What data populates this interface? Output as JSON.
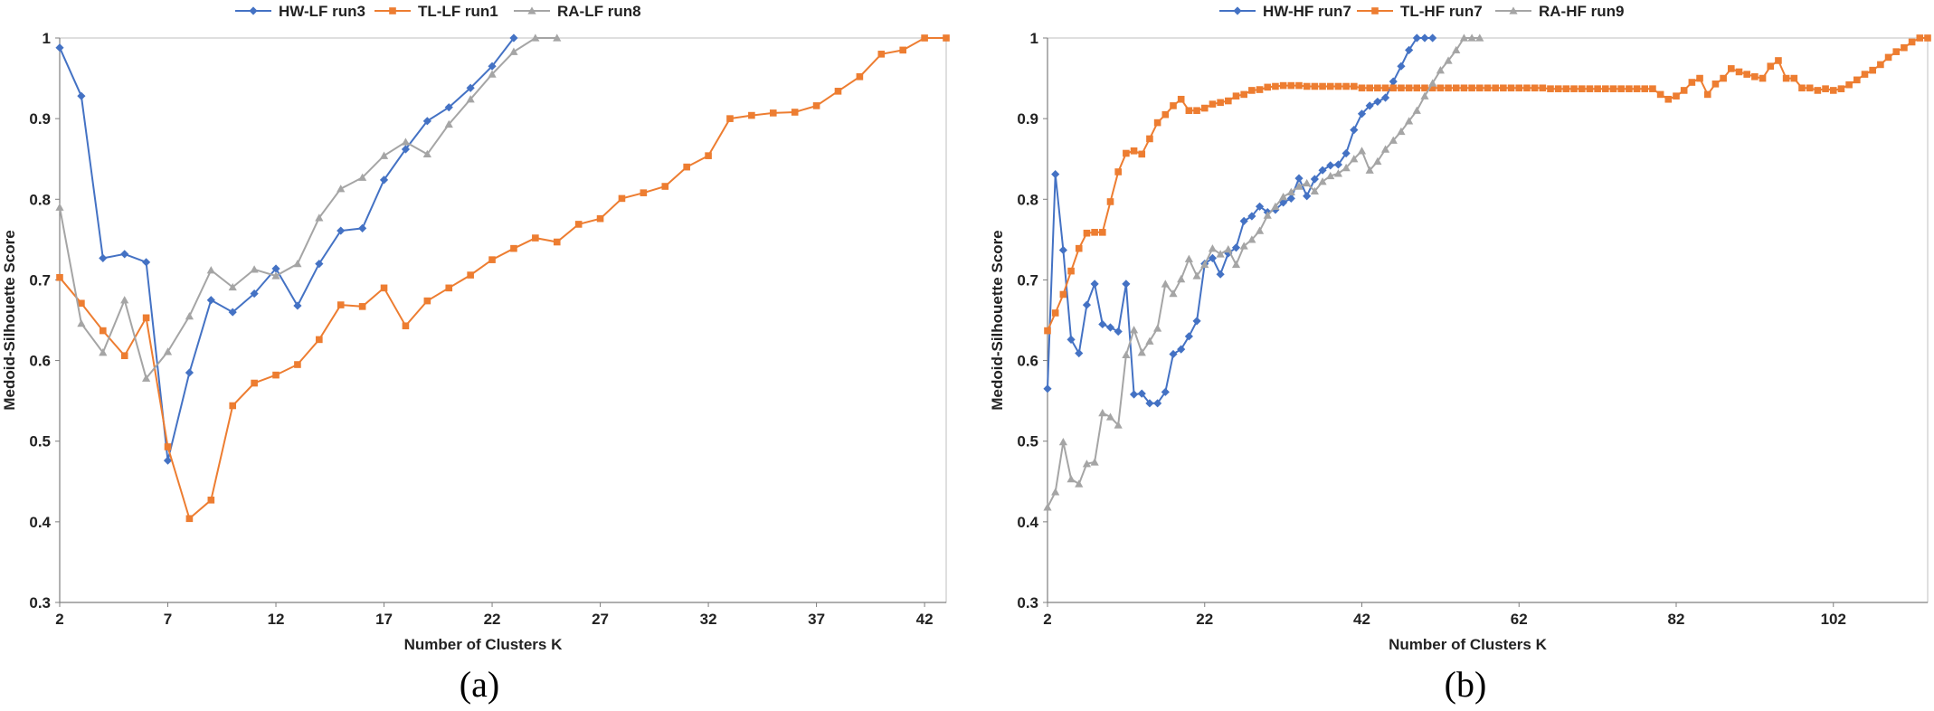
{
  "chart_data": [
    {
      "type": "line",
      "caption": "(a)",
      "xlabel": "Number of Clusters K",
      "ylabel": "Medoid-Silhouette Score",
      "xlim": [
        2,
        43
      ],
      "ylim": [
        0.3,
        1
      ],
      "xticks": [
        2,
        7,
        12,
        17,
        22,
        27,
        32,
        37,
        42
      ],
      "yticks": [
        0.3,
        0.4,
        0.5,
        0.6,
        0.7,
        0.8,
        0.9,
        1
      ],
      "ytick_labels": [
        "0.3",
        "0.4",
        "0.5",
        "0.6",
        "0.7",
        "0.8",
        "0.9",
        "1"
      ],
      "legend": "top",
      "series": [
        {
          "name": "HW-LF run3",
          "color": "#4472C4",
          "marker": "diamond",
          "x": [
            2,
            3,
            4,
            5,
            6,
            7,
            8,
            9,
            10,
            11,
            12,
            13,
            14,
            15,
            16,
            17,
            18,
            19,
            20,
            21,
            22,
            23
          ],
          "y": [
            0.988,
            0.928,
            0.727,
            0.732,
            0.722,
            0.476,
            0.585,
            0.675,
            0.66,
            0.683,
            0.714,
            0.668,
            0.72,
            0.761,
            0.764,
            0.824,
            0.862,
            0.897,
            0.914,
            0.938,
            0.965,
            1.0
          ]
        },
        {
          "name": "TL-LF run1",
          "color": "#ED7D31",
          "marker": "square",
          "x": [
            2,
            3,
            4,
            5,
            6,
            7,
            8,
            9,
            10,
            11,
            12,
            13,
            14,
            15,
            16,
            17,
            18,
            19,
            20,
            21,
            22,
            23,
            24,
            25,
            26,
            27,
            28,
            29,
            30,
            31,
            32,
            33,
            34,
            35,
            36,
            37,
            38,
            39,
            40,
            41,
            42,
            43
          ],
          "y": [
            0.703,
            0.671,
            0.637,
            0.606,
            0.653,
            0.493,
            0.404,
            0.427,
            0.544,
            0.572,
            0.582,
            0.595,
            0.626,
            0.669,
            0.667,
            0.69,
            0.643,
            0.674,
            0.69,
            0.706,
            0.725,
            0.739,
            0.752,
            0.747,
            0.769,
            0.776,
            0.801,
            0.808,
            0.816,
            0.84,
            0.854,
            0.9,
            0.904,
            0.907,
            0.908,
            0.916,
            0.934,
            0.952,
            0.98,
            0.985,
            1.0,
            1.0
          ]
        },
        {
          "name": "RA-LF run8",
          "color": "#A5A5A5",
          "marker": "triangle",
          "x": [
            2,
            3,
            4,
            5,
            6,
            7,
            8,
            9,
            10,
            11,
            12,
            13,
            14,
            15,
            16,
            17,
            18,
            19,
            20,
            21,
            22,
            23,
            24,
            25
          ],
          "y": [
            0.79,
            0.646,
            0.61,
            0.675,
            0.578,
            0.611,
            0.655,
            0.712,
            0.691,
            0.713,
            0.705,
            0.72,
            0.777,
            0.813,
            0.827,
            0.854,
            0.871,
            0.856,
            0.893,
            0.924,
            0.955,
            0.983,
            1.0,
            1.0
          ]
        }
      ]
    },
    {
      "type": "line",
      "caption": "(b)",
      "xlabel": "Number of Clusters K",
      "ylabel": "Medoid-Silhouette Score",
      "xlim": [
        2,
        114
      ],
      "ylim": [
        0.3,
        1
      ],
      "xticks": [
        2,
        22,
        42,
        62,
        82,
        102
      ],
      "yticks": [
        0.3,
        0.4,
        0.5,
        0.6,
        0.7,
        0.8,
        0.9,
        1
      ],
      "ytick_labels": [
        "0.3",
        "0.4",
        "0.5",
        "0.6",
        "0.7",
        "0.8",
        "0.9",
        "1"
      ],
      "legend": "top",
      "series": [
        {
          "name": "HW-HF run7",
          "color": "#4472C4",
          "marker": "diamond",
          "x": [
            2,
            3,
            4,
            5,
            6,
            7,
            8,
            9,
            10,
            11,
            12,
            13,
            14,
            15,
            16,
            17,
            18,
            19,
            20,
            21,
            22,
            23,
            24,
            25,
            26,
            27,
            28,
            29,
            30,
            31,
            32,
            33,
            34,
            35,
            36,
            37,
            38,
            39,
            40,
            41,
            42,
            43,
            44,
            45,
            46,
            47,
            48,
            49,
            50,
            51
          ],
          "y": [
            0.565,
            0.831,
            0.737,
            0.626,
            0.609,
            0.669,
            0.695,
            0.645,
            0.641,
            0.636,
            0.695,
            0.558,
            0.559,
            0.547,
            0.547,
            0.561,
            0.608,
            0.614,
            0.63,
            0.649,
            0.72,
            0.727,
            0.707,
            0.733,
            0.74,
            0.773,
            0.779,
            0.791,
            0.784,
            0.787,
            0.796,
            0.801,
            0.826,
            0.804,
            0.825,
            0.836,
            0.842,
            0.843,
            0.857,
            0.886,
            0.906,
            0.916,
            0.921,
            0.926,
            0.946,
            0.965,
            0.985,
            1.0,
            1.0,
            1.0
          ]
        },
        {
          "name": "TL-HF run7",
          "color": "#ED7D31",
          "marker": "square",
          "x": [
            2,
            3,
            4,
            5,
            6,
            7,
            8,
            9,
            10,
            11,
            12,
            13,
            14,
            15,
            16,
            17,
            18,
            19,
            20,
            21,
            22,
            23,
            24,
            25,
            26,
            27,
            28,
            29,
            30,
            31,
            32,
            33,
            34,
            35,
            36,
            37,
            38,
            39,
            40,
            41,
            42,
            43,
            44,
            45,
            46,
            47,
            48,
            49,
            50,
            51,
            52,
            53,
            54,
            55,
            56,
            57,
            58,
            59,
            60,
            61,
            62,
            63,
            64,
            65,
            66,
            67,
            68,
            69,
            70,
            71,
            72,
            73,
            74,
            75,
            76,
            77,
            78,
            79,
            80,
            81,
            82,
            83,
            84,
            85,
            86,
            87,
            88,
            89,
            90,
            91,
            92,
            93,
            94,
            95,
            96,
            97,
            98,
            99,
            100,
            101,
            102,
            103,
            104,
            105,
            106,
            107,
            108,
            109,
            110,
            111,
            112,
            113,
            114
          ],
          "y": [
            0.637,
            0.659,
            0.682,
            0.711,
            0.739,
            0.758,
            0.759,
            0.759,
            0.797,
            0.834,
            0.857,
            0.86,
            0.856,
            0.875,
            0.895,
            0.905,
            0.916,
            0.924,
            0.91,
            0.91,
            0.913,
            0.918,
            0.92,
            0.922,
            0.928,
            0.93,
            0.935,
            0.936,
            0.939,
            0.94,
            0.941,
            0.941,
            0.941,
            0.94,
            0.94,
            0.94,
            0.94,
            0.94,
            0.94,
            0.94,
            0.938,
            0.938,
            0.938,
            0.938,
            0.938,
            0.938,
            0.938,
            0.938,
            0.938,
            0.938,
            0.938,
            0.938,
            0.938,
            0.938,
            0.938,
            0.938,
            0.938,
            0.938,
            0.938,
            0.938,
            0.938,
            0.938,
            0.938,
            0.938,
            0.937,
            0.937,
            0.937,
            0.937,
            0.937,
            0.937,
            0.937,
            0.937,
            0.937,
            0.937,
            0.937,
            0.937,
            0.937,
            0.937,
            0.93,
            0.924,
            0.928,
            0.935,
            0.945,
            0.95,
            0.93,
            0.943,
            0.95,
            0.962,
            0.958,
            0.955,
            0.952,
            0.95,
            0.965,
            0.972,
            0.95,
            0.95,
            0.938,
            0.938,
            0.935,
            0.937,
            0.935,
            0.937,
            0.942,
            0.948,
            0.955,
            0.96,
            0.967,
            0.976,
            0.983,
            0.988,
            0.995,
            1.0,
            1.0
          ]
        },
        {
          "name": "RA-HF run9",
          "color": "#A5A5A5",
          "marker": "triangle",
          "x": [
            2,
            3,
            4,
            5,
            6,
            7,
            8,
            9,
            10,
            11,
            12,
            13,
            14,
            15,
            16,
            17,
            18,
            19,
            20,
            21,
            22,
            23,
            24,
            25,
            26,
            27,
            28,
            29,
            30,
            31,
            32,
            33,
            34,
            35,
            36,
            37,
            38,
            39,
            40,
            41,
            42,
            43,
            44,
            45,
            46,
            47,
            48,
            49,
            50,
            51,
            52,
            53,
            54,
            55,
            56,
            57
          ],
          "y": [
            0.418,
            0.437,
            0.499,
            0.453,
            0.447,
            0.472,
            0.474,
            0.535,
            0.53,
            0.52,
            0.607,
            0.638,
            0.61,
            0.624,
            0.64,
            0.695,
            0.683,
            0.701,
            0.726,
            0.705,
            0.719,
            0.739,
            0.732,
            0.738,
            0.719,
            0.742,
            0.75,
            0.761,
            0.78,
            0.791,
            0.803,
            0.809,
            0.816,
            0.82,
            0.81,
            0.822,
            0.829,
            0.832,
            0.839,
            0.85,
            0.86,
            0.836,
            0.847,
            0.862,
            0.873,
            0.884,
            0.897,
            0.91,
            0.928,
            0.944,
            0.96,
            0.972,
            0.985,
            1.0,
            1.0,
            1.0
          ]
        }
      ]
    }
  ]
}
